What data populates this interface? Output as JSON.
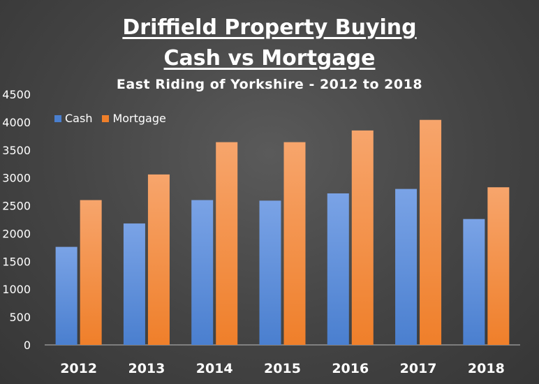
{
  "chart_data": {
    "type": "bar",
    "title": "Driffield Property Buying",
    "title_line2": "Cash vs Mortgage",
    "subtitle": "East Riding of Yorkshire - 2012 to 2018",
    "xlabel": "",
    "ylabel": "",
    "categories": [
      "2012",
      "2013",
      "2014",
      "2015",
      "2016",
      "2017",
      "2018"
    ],
    "series": [
      {
        "name": "Cash",
        "color": "#4a7fcf",
        "values": [
          1760,
          2180,
          2600,
          2590,
          2720,
          2800,
          2260
        ]
      },
      {
        "name": "Mortgage",
        "color": "#ef7f2a",
        "values": [
          2600,
          3060,
          3640,
          3640,
          3850,
          4040,
          2830
        ]
      }
    ],
    "ylim": [
      0,
      4500
    ],
    "yticks": [
      "0",
      "500",
      "1000",
      "1500",
      "2000",
      "2500",
      "3000",
      "3500",
      "4000",
      "4500"
    ],
    "grid": false,
    "legend": "top-left",
    "background": "#444444"
  }
}
